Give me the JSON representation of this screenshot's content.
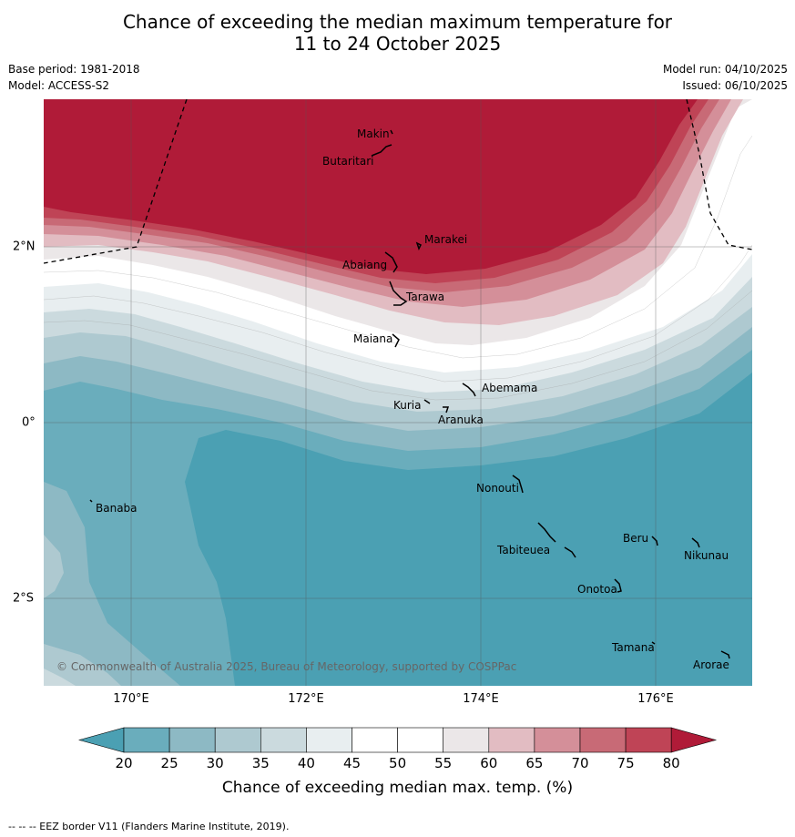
{
  "header": {
    "title_line1": "Chance of exceeding the median maximum temperature for",
    "title_line2": "11 to 24 October 2025",
    "base_period": "Base period: 1981-2018",
    "model": "Model: ACCESS-S2",
    "model_run": "Model run: 04/10/2025",
    "issued": "Issued: 06/10/2025"
  },
  "map": {
    "lon_labels": [
      "170°E",
      "172°E",
      "174°E",
      "176°E"
    ],
    "lat_labels": [
      "2°N",
      "0°",
      "2°S"
    ],
    "places": {
      "makin": "Makin",
      "butaritari": "Butaritari",
      "marakei": "Marakei",
      "abaiang": "Abaiang",
      "tarawa": "Tarawa",
      "maiana": "Maiana",
      "abemama": "Abemama",
      "kuria": "Kuria",
      "aranuka": "Aranuka",
      "nonouti": "Nonouti",
      "banaba": "Banaba",
      "beru": "Beru",
      "nikunau": "Nikunau",
      "tabiteuea": "Tabiteuea",
      "onotoa": "Onotoa",
      "tamana": "Tamana",
      "arorae": "Arorae"
    },
    "copyright": "© Commonwealth of Australia 2025, Bureau of Meteorology, supported by COSPPac"
  },
  "colorbar": {
    "ticks": [
      "20",
      "25",
      "30",
      "35",
      "40",
      "45",
      "50",
      "55",
      "60",
      "65",
      "70",
      "75",
      "80"
    ],
    "title": "Chance of exceeding median max. temp. (%)",
    "colors": {
      "below_20": "#4ba0b3",
      "20_25": "#6aadbc",
      "25_30": "#8db9c4",
      "30_35": "#aec9d0",
      "35_40": "#cbdade",
      "40_45": "#e8eef0",
      "45_50": "#ffffff",
      "50_55": "#ffffff",
      "55_60": "#ebe7e8",
      "60_65": "#e2bcc2",
      "65_70": "#d48f99",
      "70_75": "#c86a76",
      "75_80": "#bf4456",
      "above_80": "#b01b38"
    }
  },
  "footer": {
    "eez_note": "--  --  -- EEZ border V11 (Flanders Marine Institute, 2019)."
  }
}
